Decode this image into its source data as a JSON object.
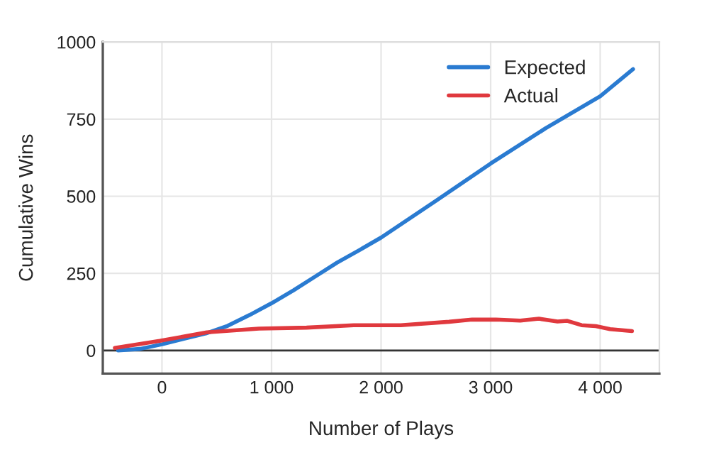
{
  "chart_data": {
    "type": "line",
    "xlabel": "Number of Plays",
    "ylabel": "Cumulative Wins",
    "xlim": [
      -540,
      4540
    ],
    "ylim": [
      -75,
      1000
    ],
    "xticks": [
      0,
      {
        "value": 1000,
        "label": "1 000"
      },
      {
        "value": 2000,
        "label": "2 000"
      },
      {
        "value": 3000,
        "label": "3 000"
      },
      {
        "value": 4000,
        "label": "4 000"
      }
    ],
    "yticks": [
      0,
      250,
      500,
      750,
      1000
    ],
    "grid": true,
    "legend": "top right",
    "ref_lines": [
      {
        "axis": "y",
        "value": 0,
        "color": "#333333"
      }
    ],
    "series": [
      {
        "name": "Expected",
        "color": "#2a7bd1",
        "x": [
          -400,
          -200,
          0,
          200,
          400,
          600,
          800,
          1000,
          1200,
          1400,
          1600,
          1800,
          2000,
          2500,
          3000,
          3500,
          4000,
          4300
        ],
        "values": [
          0,
          5,
          20,
          38,
          55,
          80,
          115,
          153,
          195,
          240,
          285,
          325,
          366,
          485,
          606,
          720,
          824,
          912
        ]
      },
      {
        "name": "Actual",
        "color": "#e0393e",
        "x": [
          -430,
          -20,
          410,
          885,
          1320,
          1750,
          2180,
          2620,
          2830,
          3050,
          3270,
          3440,
          3610,
          3700,
          3830,
          3960,
          4090,
          4290
        ],
        "values": [
          8,
          31,
          59,
          71,
          74,
          82,
          82,
          93,
          100,
          100,
          97,
          103,
          94,
          96,
          82,
          79,
          69,
          63
        ]
      }
    ]
  }
}
